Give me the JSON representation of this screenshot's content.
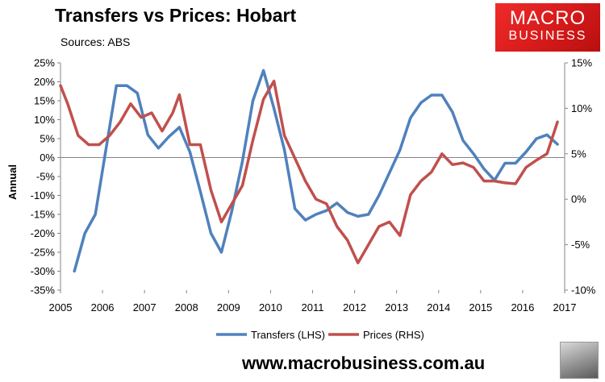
{
  "header": {
    "title": "Transfers vs Prices: Hobart",
    "source": "Sources: ABS",
    "logo_line1": "MACRO",
    "logo_line2": "BUSINESS"
  },
  "footer": {
    "website": "www.macrobusiness.com.au"
  },
  "colors": {
    "transfers": "#4f81bd",
    "prices": "#c0504d",
    "logo": "#e02020"
  },
  "chart_data": {
    "type": "line",
    "title": "Transfers vs Prices: Hobart",
    "ylabel": "Annual",
    "x_ticks": [
      "2005",
      "2006",
      "2007",
      "2008",
      "2009",
      "2010",
      "2011",
      "2012",
      "2013",
      "2014",
      "2015",
      "2016",
      "2017"
    ],
    "xlim": [
      2005,
      2017
    ],
    "y_left": {
      "ticks": [
        "25%",
        "20%",
        "15%",
        "10%",
        "5%",
        "0%",
        "-5%",
        "-10%",
        "-15%",
        "-20%",
        "-25%",
        "-30%",
        "-35%"
      ],
      "ylim": [
        -35,
        25
      ]
    },
    "y_right": {
      "ticks": [
        "15%",
        "10%",
        "5%",
        "0%",
        "-5%",
        "-10%"
      ],
      "ylim": [
        -10,
        15
      ]
    },
    "grid": false,
    "legend_position": "bottom",
    "series": [
      {
        "name": "Transfers (LHS)",
        "axis": "left",
        "x": [
          2005.33,
          2005.58,
          2005.83,
          2006.08,
          2006.33,
          2006.58,
          2006.83,
          2007.08,
          2007.33,
          2007.58,
          2007.83,
          2008.08,
          2008.33,
          2008.58,
          2008.83,
          2009.08,
          2009.33,
          2009.58,
          2009.83,
          2010.08,
          2010.33,
          2010.58,
          2010.83,
          2011.08,
          2011.33,
          2011.58,
          2011.83,
          2012.08,
          2012.33,
          2012.58,
          2012.83,
          2013.08,
          2013.33,
          2013.58,
          2013.83,
          2014.08,
          2014.33,
          2014.58,
          2014.83,
          2015.08,
          2015.33,
          2015.58,
          2015.83,
          2016.08,
          2016.33,
          2016.58,
          2016.83
        ],
        "values": [
          -30,
          -20,
          -15,
          2,
          19,
          19,
          17,
          6,
          2.5,
          5.5,
          8,
          1.5,
          -9,
          -20,
          -25,
          -14,
          -1,
          15,
          23,
          13,
          2,
          -13.5,
          -16.5,
          -15,
          -14,
          -12,
          -14.5,
          -15.5,
          -15,
          -10,
          -4,
          2,
          10.5,
          14.5,
          16.5,
          16.5,
          12,
          4.5,
          1,
          -3,
          -6,
          -1.5,
          -1.5,
          1.5,
          5,
          6,
          3.5
        ]
      },
      {
        "name": "Prices (RHS)",
        "axis": "right",
        "x": [
          2005.0,
          2005.17,
          2005.42,
          2005.67,
          2005.92,
          2006.17,
          2006.42,
          2006.67,
          2006.92,
          2007.17,
          2007.42,
          2007.67,
          2007.83,
          2008.08,
          2008.33,
          2008.58,
          2008.83,
          2009.08,
          2009.33,
          2009.58,
          2009.83,
          2010.08,
          2010.33,
          2010.58,
          2010.83,
          2011.08,
          2011.33,
          2011.58,
          2011.83,
          2012.08,
          2012.33,
          2012.58,
          2012.83,
          2013.08,
          2013.33,
          2013.58,
          2013.83,
          2014.08,
          2014.33,
          2014.58,
          2014.83,
          2015.08,
          2015.33,
          2015.58,
          2015.83,
          2016.08,
          2016.33,
          2016.58,
          2016.83
        ],
        "values": [
          12.5,
          10.5,
          7,
          6,
          6,
          7,
          8.5,
          10.5,
          9,
          9.5,
          7.5,
          9.5,
          11.5,
          6,
          6,
          1,
          -2.5,
          -0.5,
          1.5,
          6.5,
          11,
          13,
          7,
          4.5,
          2,
          0,
          -0.5,
          -3,
          -4.5,
          -7,
          -5,
          -3,
          -2.5,
          -4,
          0.5,
          2,
          3,
          5,
          3.8,
          4,
          3.5,
          2,
          2,
          1.8,
          1.7,
          3.5,
          4.3,
          5,
          8.5
        ]
      }
    ]
  }
}
